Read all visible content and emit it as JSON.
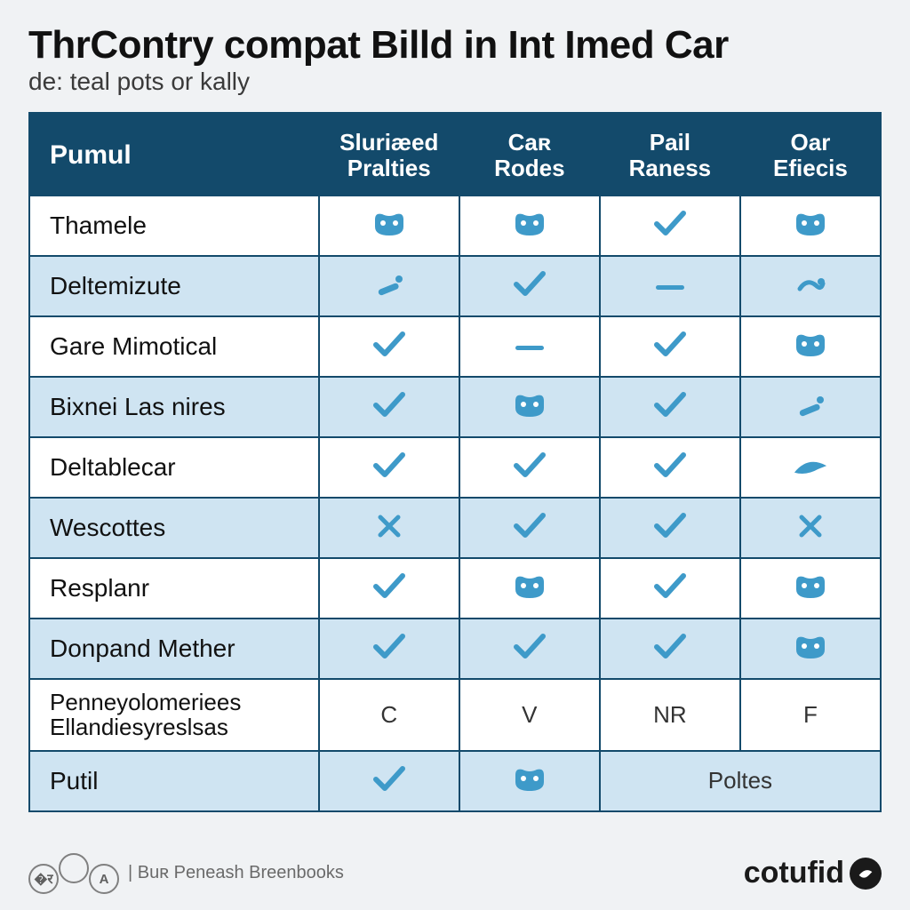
{
  "title": "ThrContry compat Billd in Int Imed Car",
  "subtitle": "de: teal pots or kally",
  "colors": {
    "header_bg": "#134a6b",
    "header_text": "#ffffff",
    "row_odd_bg": "#ffffff",
    "row_even_bg": "#cfe4f2",
    "border": "#134a6b",
    "icon": "#3e9ac9",
    "page_bg": "#f0f2f4",
    "text": "#1a1a1a"
  },
  "table": {
    "type": "table",
    "row_header": "Pumul",
    "columns": [
      {
        "lines": [
          "Sluriæed",
          "Pralties"
        ]
      },
      {
        "lines": [
          "Caʀ",
          "Rodes"
        ]
      },
      {
        "lines": [
          "Pail",
          "Raness"
        ]
      },
      {
        "lines": [
          "Oar",
          "Efiecis"
        ]
      }
    ],
    "column_widths_pct": [
      34,
      16.5,
      16.5,
      16.5,
      16.5
    ],
    "rows": [
      {
        "label": "Thamele",
        "cells": [
          "mask",
          "mask",
          "check",
          "mask"
        ]
      },
      {
        "label": "Deltemizute",
        "cells": [
          "wand",
          "check",
          "dash",
          "swirl"
        ]
      },
      {
        "label": "Gare Mimotical",
        "cells": [
          "check",
          "dash",
          "check",
          "mask"
        ]
      },
      {
        "label": "Bixnei Las nires",
        "cells": [
          "check",
          "mask",
          "check",
          "wand"
        ]
      },
      {
        "label": "Deltablecar",
        "cells": [
          "check",
          "check",
          "check",
          "swoosh"
        ]
      },
      {
        "label": "Wescottes",
        "cells": [
          "cross",
          "check",
          "check",
          "cross"
        ]
      },
      {
        "label": "Resplanr",
        "cells": [
          "check",
          "mask",
          "check",
          "mask"
        ]
      },
      {
        "label": "Donpand Mether",
        "cells": [
          "check",
          "check",
          "check",
          "mask"
        ]
      },
      {
        "label": "Penneyolomeriees Ellandiesyreslsas",
        "cells": [
          "text:C",
          "text:V",
          "text:NR",
          "text:F"
        ]
      },
      {
        "label": "Putil",
        "cells": [
          "check",
          "mask",
          {
            "span": 2,
            "value": "text:Poltes"
          }
        ]
      }
    ]
  },
  "footer": {
    "circles": [
      "�र",
      "",
      "A"
    ],
    "source_prefix": "| ",
    "source": "Buʀ Peneash Breenbooks",
    "brand": "cotufid"
  }
}
